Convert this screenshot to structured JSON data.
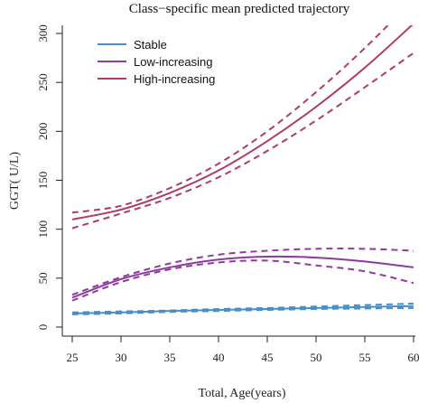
{
  "chart_data": {
    "type": "line",
    "title": "Class−specific mean predicted trajectory",
    "xlabel": "Total, Age(years)",
    "ylabel": "GGT( U/L)",
    "xlim": [
      25,
      60
    ],
    "ylim": [
      0,
      300
    ],
    "x_ticks": [
      25,
      30,
      35,
      40,
      45,
      50,
      55,
      60
    ],
    "y_ticks": [
      0,
      50,
      100,
      150,
      200,
      250,
      300
    ],
    "grid": false,
    "legend_position": "top-left",
    "x": [
      25,
      30,
      35,
      40,
      45,
      50,
      55,
      60
    ],
    "series": [
      {
        "name": "Stable",
        "color": "#4a8ec8",
        "values": [
          14,
          15,
          16.5,
          17.5,
          18.5,
          19.5,
          20.5,
          21.5
        ],
        "ci_upper": [
          15,
          16,
          17,
          18.5,
          19.5,
          21,
          22.5,
          24
        ],
        "ci_lower": [
          13,
          14,
          15.5,
          16.5,
          17.5,
          18.5,
          19,
          19.5
        ]
      },
      {
        "name": "Low-increasing",
        "color": "#8e3a9e",
        "values": [
          30,
          49,
          61,
          69,
          72,
          71,
          67,
          61
        ],
        "ci_upper": [
          33,
          51,
          65,
          74,
          78,
          80,
          80,
          78
        ],
        "ci_lower": [
          27,
          46,
          59,
          66,
          68,
          63,
          57,
          45
        ]
      },
      {
        "name": "High-increasing",
        "color": "#b03a6a",
        "values": [
          110,
          120,
          137,
          160,
          190,
          225,
          265,
          310
        ],
        "ci_upper": [
          117,
          124,
          142,
          167,
          200,
          240,
          285,
          335
        ],
        "ci_lower": [
          101,
          116,
          132,
          153,
          180,
          211,
          245,
          280
        ]
      }
    ]
  }
}
